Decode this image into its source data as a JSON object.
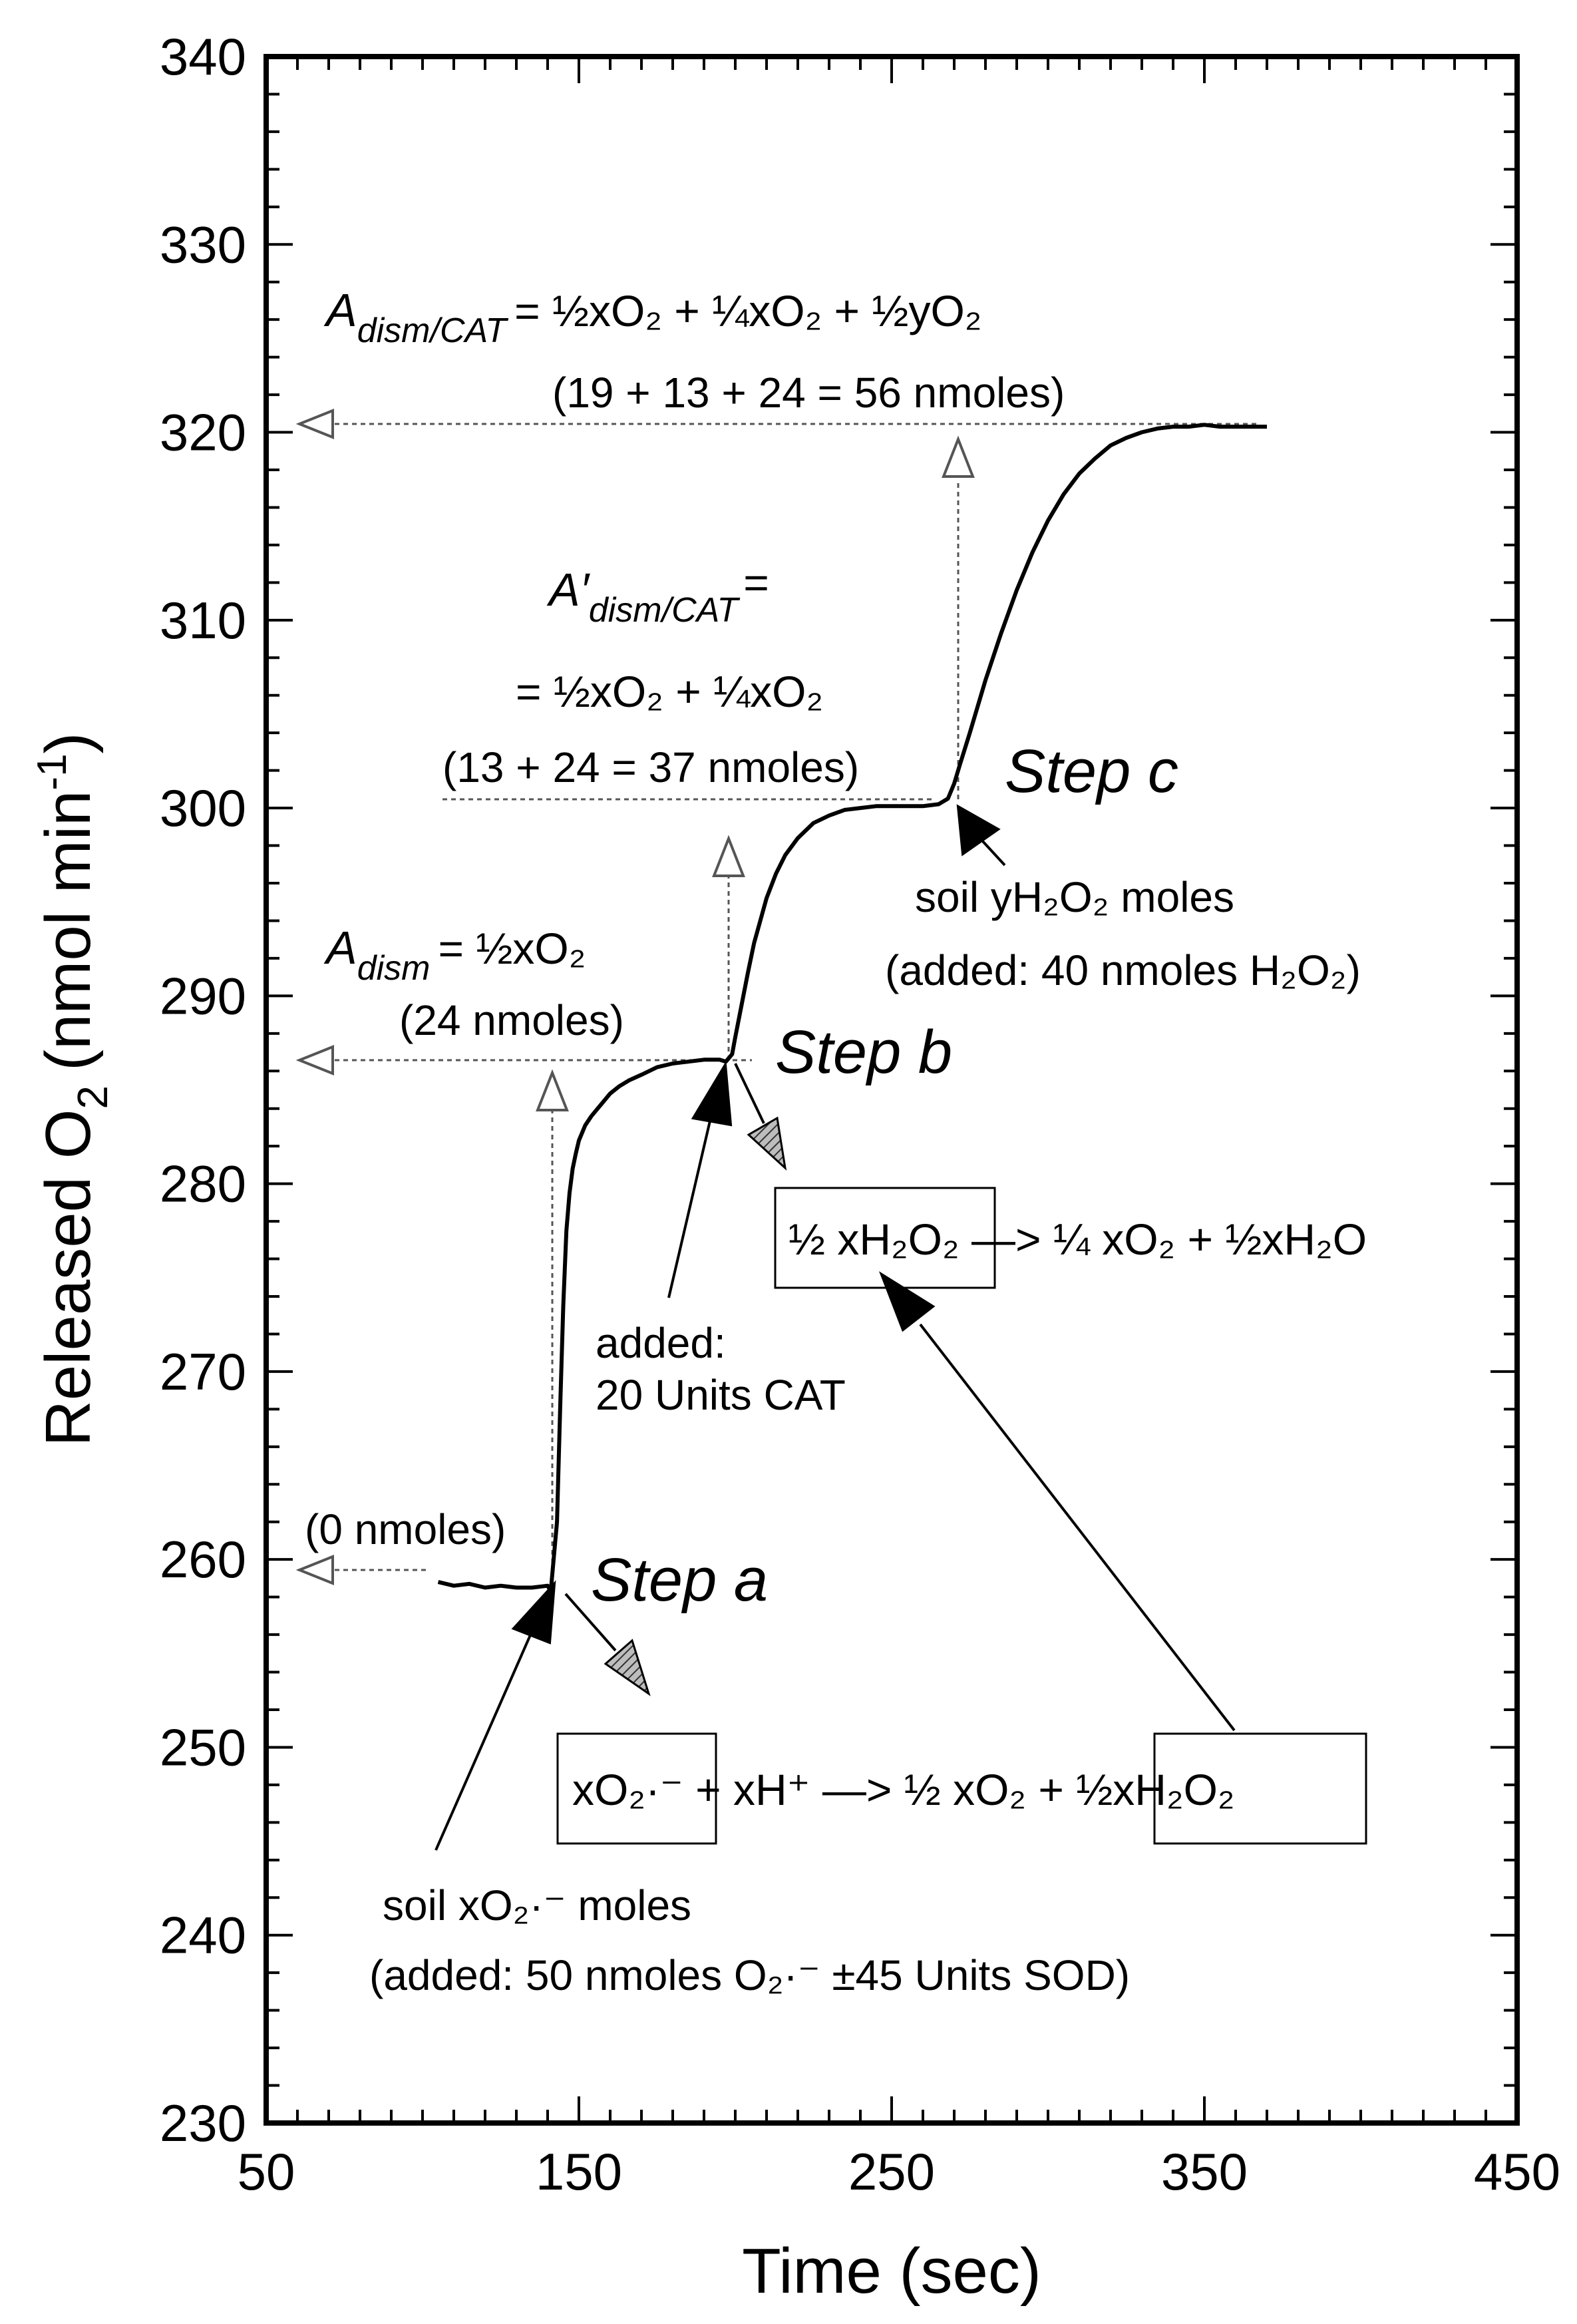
{
  "chart_data": {
    "type": "line",
    "title": "",
    "xlabel": "Time (sec)",
    "ylabel": "Released O",
    "ylabel_sub": "2",
    "ylabel_unit": "(nmol min",
    "ylabel_unit_sup": "-1",
    "ylabel_unit_end": ")",
    "xlim": [
      50,
      450
    ],
    "ylim": [
      230,
      340
    ],
    "x_ticks": [
      50,
      150,
      250,
      350,
      450
    ],
    "y_ticks": [
      230,
      240,
      250,
      260,
      270,
      280,
      290,
      300,
      310,
      320,
      330,
      340
    ],
    "x_minor_step": 10,
    "y_minor_step": 2,
    "grid": false,
    "series": [
      {
        "name": "",
        "x": [
          105,
          110,
          115,
          120,
          125,
          130,
          135,
          140,
          141,
          143,
          144,
          145,
          146,
          147,
          148,
          149,
          150,
          152,
          154,
          156,
          158,
          160,
          163,
          166,
          170,
          175,
          180,
          185,
          190,
          195,
          197,
          199,
          200,
          202,
          204,
          206,
          208,
          210,
          213,
          216,
          220,
          225,
          230,
          235,
          240,
          245,
          250,
          255,
          260,
          265,
          268,
          270,
          272,
          275,
          280,
          285,
          290,
          295,
          300,
          305,
          310,
          315,
          320,
          325,
          330,
          335,
          340,
          345,
          350,
          355,
          360,
          365,
          370
        ],
        "y": [
          258.8,
          258.6,
          258.7,
          258.5,
          258.6,
          258.5,
          258.5,
          258.6,
          258.3,
          262.0,
          268.0,
          273.5,
          277.5,
          279.5,
          280.8,
          281.6,
          282.3,
          283.1,
          283.6,
          284.0,
          284.4,
          284.8,
          285.2,
          285.5,
          285.8,
          286.2,
          286.4,
          286.5,
          286.6,
          286.6,
          286.5,
          286.9,
          287.8,
          289.5,
          291.2,
          292.8,
          294.0,
          295.2,
          296.5,
          297.5,
          298.4,
          299.2,
          299.6,
          299.9,
          300.0,
          300.1,
          300.1,
          300.1,
          300.1,
          300.2,
          300.5,
          301.3,
          302.4,
          304.0,
          306.8,
          309.3,
          311.6,
          313.6,
          315.3,
          316.7,
          317.8,
          318.6,
          319.3,
          319.7,
          320.0,
          320.2,
          320.3,
          320.3,
          320.4,
          320.3,
          320.3,
          320.3,
          320.3
        ]
      }
    ],
    "annotations": {
      "step_a": "Step a",
      "step_b": "Step b",
      "step_c": "Step c",
      "zero_nmoles": "(0 nmoles)",
      "a_dism_label": "A",
      "a_dism_sub": "dism",
      "a_dism_eq": "= ½xO₂",
      "a_dism_val": "(24 nmoles)",
      "a_prime_label": "A′",
      "a_prime_sub": "dism/CAT",
      "a_prime_eq1": "=",
      "a_prime_eq2": "= ½xO₂ + ¼xO₂",
      "a_prime_val": "(13 + 24 = 37 nmoles)",
      "a_total_label": "A",
      "a_total_sub": "dism/CAT",
      "a_total_eq": "= ½xO₂ + ¼xO₂ + ½yO₂",
      "a_total_val": "(19 + 13 + 24 = 56 nmoles)",
      "cat_added_1": "added:",
      "cat_added_2": "20 Units CAT",
      "soil_y_1": "soil yH₂O₂ moles",
      "soil_y_2": "(added: 40 nmoles H₂O₂)",
      "soil_x_1": "soil xO₂·⁻ moles",
      "soil_x_2": "(added: 50 nmoles O₂·⁻ ±45 Units SOD)",
      "reaction_b": "½ xH₂O₂ —> ¼ xO₂ + ½xH₂O",
      "reaction_a": "xO₂·⁻ + xH⁺ —> ½ xO₂ + ½xH₂O₂"
    }
  }
}
